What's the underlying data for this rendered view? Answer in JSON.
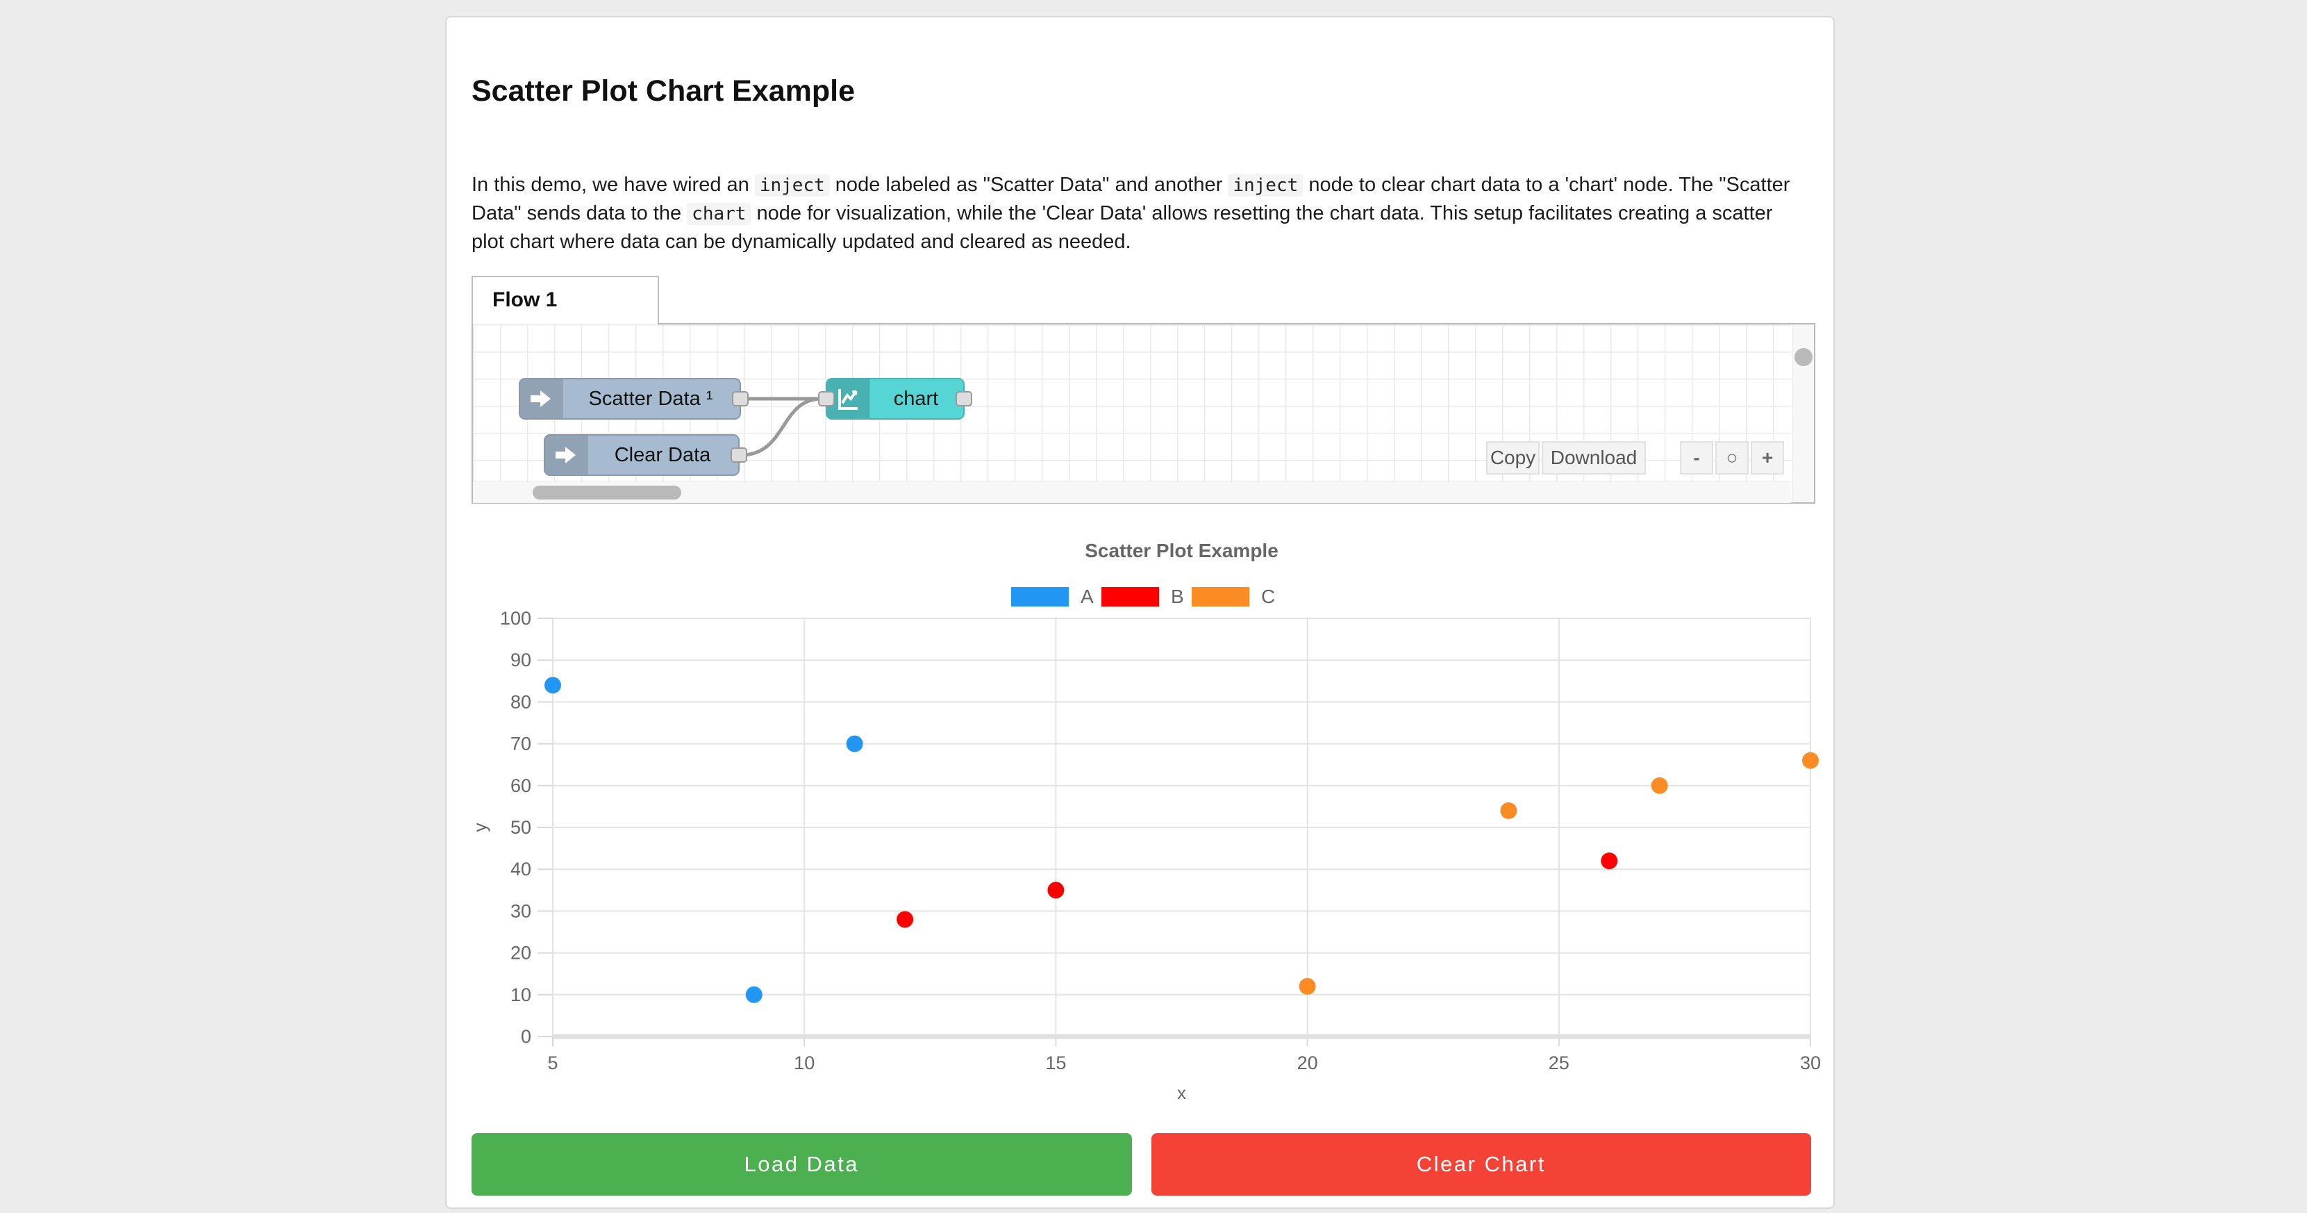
{
  "page": {
    "background": "#ececec",
    "card_background": "#ffffff"
  },
  "header": {
    "title": "Scatter Plot Chart Example"
  },
  "intro": {
    "segments": [
      {
        "type": "text",
        "text": "In this demo, we have wired an "
      },
      {
        "type": "code",
        "text": "inject"
      },
      {
        "type": "text",
        "text": " node labeled as \"Scatter Data\" and another "
      },
      {
        "type": "code",
        "text": "inject"
      },
      {
        "type": "text",
        "text": " node to clear chart data to a 'chart' node. The \"Scatter Data\" sends data to the "
      },
      {
        "type": "code",
        "text": "chart"
      },
      {
        "type": "text",
        "text": " node for visualization, while the 'Clear Data' allows resetting the chart data. This setup facilitates creating a scatter plot chart where data can be dynamically updated and cleared as needed."
      }
    ]
  },
  "flow": {
    "tab_label": "Flow 1",
    "nodes": [
      {
        "label": "Scatter Data ¹",
        "type": "inject",
        "color": "#a6bbcf",
        "icon": "block-arrow-right-icon"
      },
      {
        "label": "Clear Data",
        "type": "inject",
        "color": "#a6bbcf",
        "icon": "block-arrow-right-icon"
      },
      {
        "label": "chart",
        "type": "chart",
        "color": "#56d5d5",
        "icon": "line-chart-icon"
      }
    ],
    "wire_color": "#999999",
    "toolbar": {
      "copy_label": "Copy",
      "download_label": "Download"
    },
    "zoom_controls": {
      "zoom_out": "-",
      "zoom_reset": "○",
      "zoom_in": "+"
    }
  },
  "chart_data": {
    "type": "scatter",
    "title": "Scatter Plot Example",
    "xlabel": "x",
    "ylabel": "y",
    "xlim": [
      5,
      30
    ],
    "ylim": [
      0,
      100
    ],
    "x_ticks": [
      5,
      10,
      15,
      20,
      25,
      30
    ],
    "y_ticks": [
      0,
      10,
      20,
      30,
      40,
      50,
      60,
      70,
      80,
      90,
      100
    ],
    "grid": true,
    "legend_position": "top-center",
    "title_color": "#666666",
    "tick_color": "#666666",
    "series": [
      {
        "name": "A",
        "color": "#2196f3",
        "points": [
          [
            5,
            84
          ],
          [
            9,
            10
          ],
          [
            11,
            70
          ]
        ]
      },
      {
        "name": "B",
        "color": "#ff0000",
        "points": [
          [
            12,
            28
          ],
          [
            15,
            35
          ],
          [
            26,
            42
          ]
        ]
      },
      {
        "name": "C",
        "color": "#fb8b23",
        "points": [
          [
            20,
            12
          ],
          [
            24,
            54
          ],
          [
            27,
            60
          ],
          [
            30,
            66
          ]
        ]
      }
    ]
  },
  "actions": {
    "load": {
      "label": "Load Data",
      "color": "#4caf50"
    },
    "clear": {
      "label": "Clear Chart",
      "color": "#f44336"
    }
  }
}
